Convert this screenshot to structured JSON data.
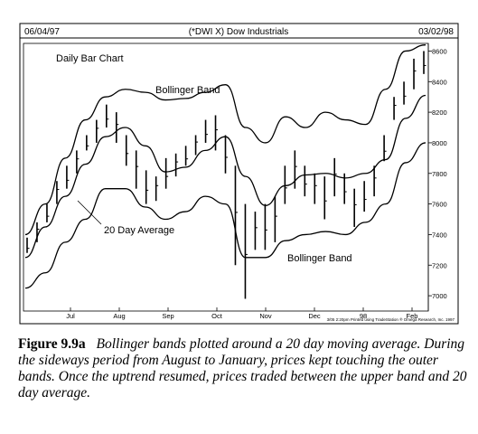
{
  "figure": {
    "header_left": "06/04/97",
    "header_center": "(*DWI X) Dow Industrials",
    "header_right": "03/02/98",
    "chart_label": "Daily Bar Chart",
    "footer": "3/05  2:20pm Printed using TradeStation ® Omega Research, Inc. 1997",
    "annotations": {
      "upper_band": "Bollinger Band",
      "average": "20 Day Average",
      "lower_band": "Bollinger Band"
    },
    "caption_label": "Figure 9.9a",
    "caption_text": "Bollinger bands plotted around a 20 day moving average. During the sideways period from August to January, prices kept touching the outer bands. Once the uptrend resumed, prices traded between the upper band and 20 day average."
  },
  "chart_data": {
    "type": "line",
    "title": "(*DWI X) Dow Industrials",
    "subtitle": "Daily Bar Chart",
    "date_range": [
      "06/04/97",
      "03/02/98"
    ],
    "y_ticks": [
      7000,
      7200,
      7400,
      7600,
      7800,
      8000,
      8200,
      8400,
      8600
    ],
    "ylim": [
      6900,
      8650
    ],
    "x_ticks": [
      "Jul",
      "Aug",
      "Sep",
      "Oct",
      "Nov",
      "Dec",
      "98",
      "Feb"
    ],
    "x": [
      "Jun 04",
      "Jun 18",
      "Jul 02",
      "Jul 16",
      "Jul 30",
      "Aug 13",
      "Aug 27",
      "Sep 10",
      "Sep 24",
      "Oct 08",
      "Oct 22",
      "Nov 05",
      "Nov 19",
      "Dec 03",
      "Dec 17",
      "Dec 31",
      "Jan 14",
      "Jan 28",
      "Feb 11",
      "Feb 25",
      "Mar 02"
    ],
    "series": [
      {
        "name": "Bollinger Band",
        "role": "upper",
        "values": [
          7400,
          7600,
          7900,
          8150,
          8300,
          8350,
          8330,
          8280,
          8290,
          8330,
          8380,
          8100,
          8000,
          8170,
          8100,
          8200,
          8150,
          8120,
          8350,
          8600,
          8640
        ]
      },
      {
        "name": "20 Day Average",
        "role": "average",
        "values": [
          7250,
          7450,
          7650,
          7860,
          8040,
          8100,
          7980,
          7810,
          7840,
          7950,
          8040,
          7780,
          7590,
          7720,
          7790,
          7800,
          7770,
          7800,
          7890,
          8160,
          8310
        ]
      },
      {
        "name": "Bollinger Band",
        "role": "lower",
        "values": [
          7050,
          7150,
          7350,
          7500,
          7700,
          7700,
          7580,
          7500,
          7550,
          7650,
          7600,
          7250,
          7250,
          7360,
          7400,
          7420,
          7400,
          7480,
          7600,
          7870,
          8000
        ]
      }
    ],
    "price_bars": {
      "x": [
        "Jun 04",
        "Jun 11",
        "Jun 18",
        "Jun 25",
        "Jul 02",
        "Jul 09",
        "Jul 16",
        "Jul 23",
        "Jul 30",
        "Aug 06",
        "Aug 13",
        "Aug 20",
        "Aug 27",
        "Sep 03",
        "Sep 10",
        "Sep 17",
        "Sep 24",
        "Oct 01",
        "Oct 08",
        "Oct 15",
        "Oct 22",
        "Oct 27",
        "Oct 29",
        "Nov 05",
        "Nov 12",
        "Nov 19",
        "Nov 26",
        "Dec 03",
        "Dec 10",
        "Dec 17",
        "Dec 24",
        "Dec 31",
        "Jan 07",
        "Jan 14",
        "Jan 21",
        "Jan 28",
        "Feb 04",
        "Feb 11",
        "Feb 18",
        "Feb 25",
        "Mar 02"
      ],
      "high": [
        7380,
        7480,
        7600,
        7750,
        7850,
        7950,
        8050,
        8150,
        8250,
        8200,
        8050,
        7950,
        7820,
        7780,
        7900,
        7930,
        7980,
        8050,
        8150,
        8180,
        8050,
        7850,
        7600,
        7550,
        7600,
        7650,
        7850,
        7950,
        7850,
        7800,
        7780,
        7900,
        7800,
        7700,
        7750,
        7850,
        8050,
        8300,
        8400,
        8550,
        8600
      ],
      "low": [
        7280,
        7350,
        7480,
        7600,
        7700,
        7800,
        7950,
        8000,
        8100,
        8000,
        7850,
        7700,
        7600,
        7620,
        7700,
        7780,
        7850,
        7920,
        8000,
        7950,
        7800,
        7200,
        6980,
        7300,
        7300,
        7350,
        7600,
        7700,
        7650,
        7600,
        7500,
        7650,
        7600,
        7450,
        7550,
        7650,
        7880,
        8150,
        8250,
        8350,
        8450
      ]
    },
    "xlabel": "",
    "ylabel": "",
    "grid": false,
    "legend": "none"
  }
}
